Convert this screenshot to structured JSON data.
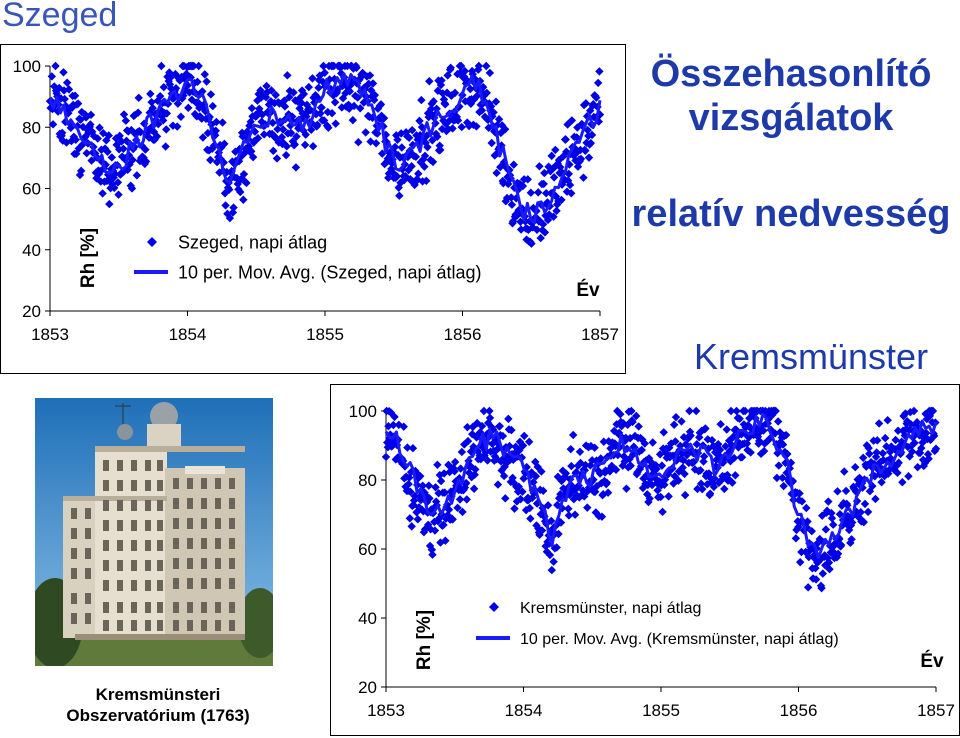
{
  "page_title": "Szeged",
  "heading": {
    "line1": "Összehasonlító",
    "line2": "vizsgálatok",
    "subtitle": "relatív nedvesség"
  },
  "kremsmunster_title": "Kremsmünster",
  "photo_caption": {
    "line1": "Kremsmünsteri",
    "line2": "Obszervatórium (1763)"
  },
  "colors": {
    "series": "#0000ff",
    "title": "#1e3aa8"
  },
  "chart_data": [
    {
      "type": "scatter",
      "title": "",
      "xlabel": "Év",
      "ylabel": "Rh [%]",
      "xlim": [
        1853,
        1857
      ],
      "ylim": [
        20,
        100
      ],
      "xticks": [
        "1853",
        "1854",
        "1855",
        "1856",
        "1857"
      ],
      "yticks": [
        "20",
        "40",
        "60",
        "80",
        "100"
      ],
      "legend_position": "bottom-left",
      "series": [
        {
          "name": "Szeged, napi átlag",
          "marker": "diamond"
        },
        {
          "name": "10 per. Mov. Avg. (Szeged, napi átlag)",
          "marker": "line"
        }
      ],
      "x": [
        1853.0,
        1853.1,
        1853.2,
        1853.3,
        1853.4,
        1853.5,
        1853.6,
        1853.7,
        1853.8,
        1853.9,
        1854.0,
        1854.1,
        1854.2,
        1854.3,
        1854.4,
        1854.5,
        1854.6,
        1854.7,
        1854.8,
        1854.9,
        1855.0,
        1855.1,
        1855.2,
        1855.3,
        1855.4,
        1855.5,
        1855.6,
        1855.7,
        1855.8,
        1855.9,
        1856.0,
        1856.1,
        1856.2,
        1856.3,
        1856.4,
        1856.5,
        1856.6,
        1856.7,
        1856.8,
        1856.9,
        1857.0
      ],
      "trend": [
        89,
        85,
        80,
        74,
        68,
        68,
        73,
        80,
        85,
        90,
        94,
        90,
        78,
        60,
        72,
        80,
        84,
        82,
        80,
        83,
        92,
        96,
        94,
        90,
        80,
        68,
        70,
        76,
        82,
        86,
        92,
        94,
        84,
        70,
        56,
        50,
        56,
        62,
        70,
        78,
        88
      ],
      "spread": 8
    },
    {
      "type": "scatter",
      "title": "",
      "xlabel": "Év",
      "ylabel": "Rh [%]",
      "xlim": [
        1853,
        1857
      ],
      "ylim": [
        20,
        100
      ],
      "xticks": [
        "1853",
        "1854",
        "1855",
        "1856",
        "1857"
      ],
      "yticks": [
        "20",
        "40",
        "60",
        "80",
        "100"
      ],
      "legend_position": "bottom-center",
      "series": [
        {
          "name": "Kremsmünster, napi átlag",
          "marker": "diamond"
        },
        {
          "name": "10 per. Mov. Avg. (Kremsmünster, napi átlag)",
          "marker": "line"
        }
      ],
      "x": [
        1853.0,
        1853.1,
        1853.2,
        1853.3,
        1853.4,
        1853.5,
        1853.6,
        1853.7,
        1853.8,
        1853.9,
        1854.0,
        1854.1,
        1854.2,
        1854.3,
        1854.4,
        1854.5,
        1854.6,
        1854.7,
        1854.8,
        1854.9,
        1855.0,
        1855.1,
        1855.2,
        1855.3,
        1855.4,
        1855.5,
        1855.6,
        1855.7,
        1855.8,
        1855.9,
        1856.0,
        1856.1,
        1856.2,
        1856.3,
        1856.4,
        1856.5,
        1856.6,
        1856.7,
        1856.8,
        1856.9,
        1857.0
      ],
      "trend": [
        94,
        90,
        80,
        72,
        70,
        76,
        84,
        92,
        92,
        88,
        84,
        76,
        62,
        76,
        80,
        80,
        86,
        90,
        90,
        84,
        80,
        86,
        90,
        88,
        84,
        88,
        94,
        97,
        96,
        86,
        70,
        58,
        60,
        66,
        72,
        80,
        84,
        88,
        92,
        94,
        94
      ],
      "spread": 7
    }
  ]
}
